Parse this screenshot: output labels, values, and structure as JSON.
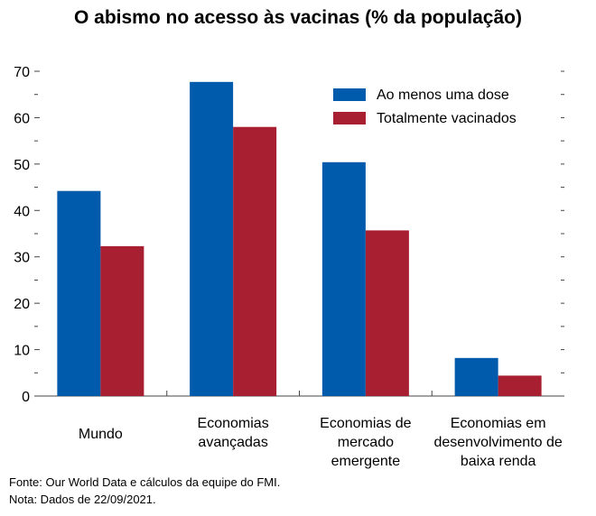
{
  "chart_data": {
    "type": "bar",
    "title": "O abismo no acesso às vacinas (% da população)",
    "categories": [
      "Mundo",
      "Economias\navançadas",
      "Economias de\nmercado\nemergente",
      "Economias em\ndesenvolvimento de\nbaixa renda"
    ],
    "series": [
      {
        "name": "Ao menos uma dose",
        "values": [
          44.2,
          67.7,
          50.4,
          8.2
        ]
      },
      {
        "name": "Totalmente vacinados",
        "values": [
          32.3,
          58.0,
          35.7,
          4.4
        ]
      }
    ],
    "ylim": [
      0,
      70
    ],
    "yticks": [
      "0",
      "10",
      "20",
      "30",
      "40",
      "50",
      "60",
      "70"
    ],
    "legend_position": "top-right",
    "grid": false,
    "colors": {
      "series": [
        "#005BAC",
        "#A81F32"
      ]
    }
  },
  "notes": {
    "source": "Fonte: Our World Data e cálculos da equipe do FMI.",
    "note": "Nota: Dados de 22/09/2021."
  }
}
